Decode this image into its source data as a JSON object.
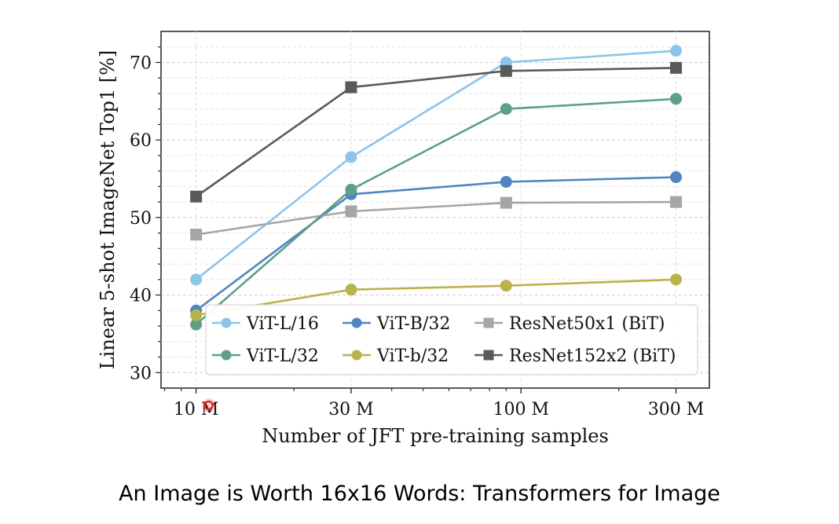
{
  "caption": "An Image is Worth 16x16 Words: Transformers for Image",
  "colors": {
    "vit_l16": "#8cc4ea",
    "vit_b32": "#4f86c1",
    "resnet50": "#a6a6a6",
    "vit_l32": "#5e9f8a",
    "vit_b32_small": "#bab24a",
    "resnet152": "#5a5a5a",
    "cursor": "#ee2222"
  },
  "chart_data": {
    "type": "line",
    "xlabel": "Number of JFT pre-training samples",
    "ylabel": "Linear 5-shot ImageNet Top1 [%]",
    "x_scale": "log",
    "x": [
      10,
      30,
      90,
      300
    ],
    "x_unit": "M samples",
    "xticks": [
      {
        "value": 10,
        "label": "10 M"
      },
      {
        "value": 30,
        "label": "30 M"
      },
      {
        "value": 100,
        "label": "100 M"
      },
      {
        "value": 300,
        "label": "300 M"
      }
    ],
    "yticks": [
      30,
      40,
      50,
      60,
      70
    ],
    "ylim": [
      28,
      74
    ],
    "grid": true,
    "legend_position": "lower-right",
    "series": [
      {
        "name": "ViT-L/16",
        "color_key": "vit_l16",
        "marker": "circle",
        "values": [
          42.0,
          57.8,
          70.0,
          71.5
        ]
      },
      {
        "name": "ViT-B/32",
        "color_key": "vit_b32",
        "marker": "circle",
        "values": [
          38.0,
          53.0,
          54.6,
          55.2
        ]
      },
      {
        "name": "ResNet50x1 (BiT)",
        "color_key": "resnet50",
        "marker": "square",
        "values": [
          47.8,
          50.8,
          51.9,
          52.0
        ]
      },
      {
        "name": "ViT-L/32",
        "color_key": "vit_l32",
        "marker": "circle",
        "values": [
          36.2,
          53.6,
          64.0,
          65.3
        ]
      },
      {
        "name": "ViT-b/32",
        "color_key": "vit_b32_small",
        "marker": "circle",
        "values": [
          37.4,
          40.7,
          41.2,
          42.0
        ]
      },
      {
        "name": "ResNet152x2 (BiT)",
        "color_key": "resnet152",
        "marker": "square",
        "values": [
          52.7,
          66.8,
          68.9,
          69.3
        ]
      }
    ]
  }
}
